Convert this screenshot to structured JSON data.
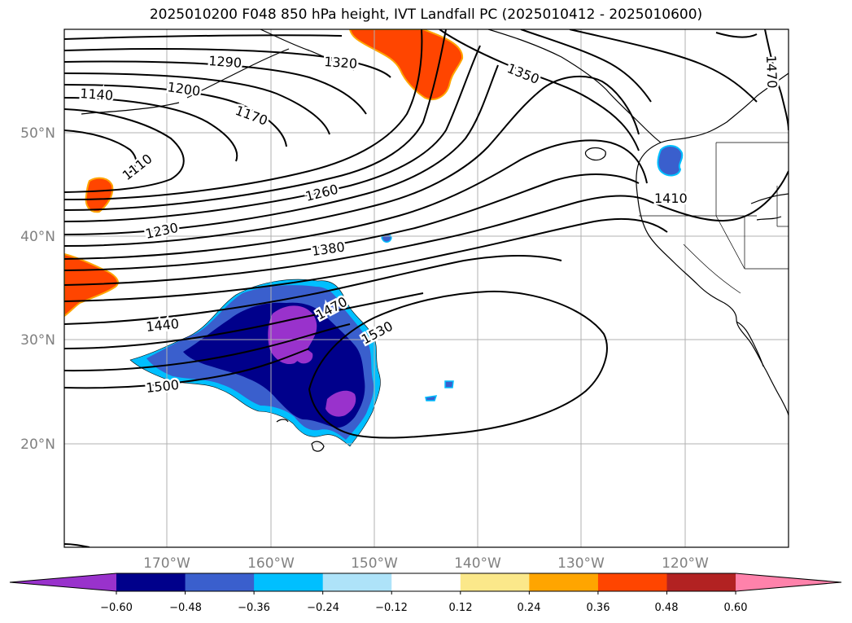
{
  "title": "2025010200 F048 850 hPa height, IVT Landfall PC (2025010412 - 2025010600)",
  "map": {
    "latitude_labels": [
      "50°N",
      "40°N",
      "30°N",
      "20°N"
    ],
    "longitude_labels": [
      "170°W",
      "160°W",
      "150°W",
      "140°W",
      "130°W",
      "120°W"
    ],
    "grid": true
  },
  "contours": {
    "color": "#000000",
    "labels": [
      "1290",
      "1320",
      "1350",
      "1470",
      "1140",
      "1200",
      "1170",
      "1110",
      "1260",
      "1410",
      "1230",
      "1380",
      "1440",
      "1470",
      "1530",
      "1500"
    ]
  },
  "colorbar": {
    "ticks": [
      "−0.60",
      "−0.48",
      "−0.36",
      "−0.24",
      "−0.12",
      "0.12",
      "0.24",
      "0.36",
      "0.48",
      "0.60"
    ],
    "colors": [
      "#9932cc",
      "#00008b",
      "#3a5fcd",
      "#00bfff",
      "#aee3f9",
      "#ffffff",
      "#fbe88a",
      "#ffa500",
      "#ff4500",
      "#b22222",
      "#ff82ab"
    ]
  }
}
